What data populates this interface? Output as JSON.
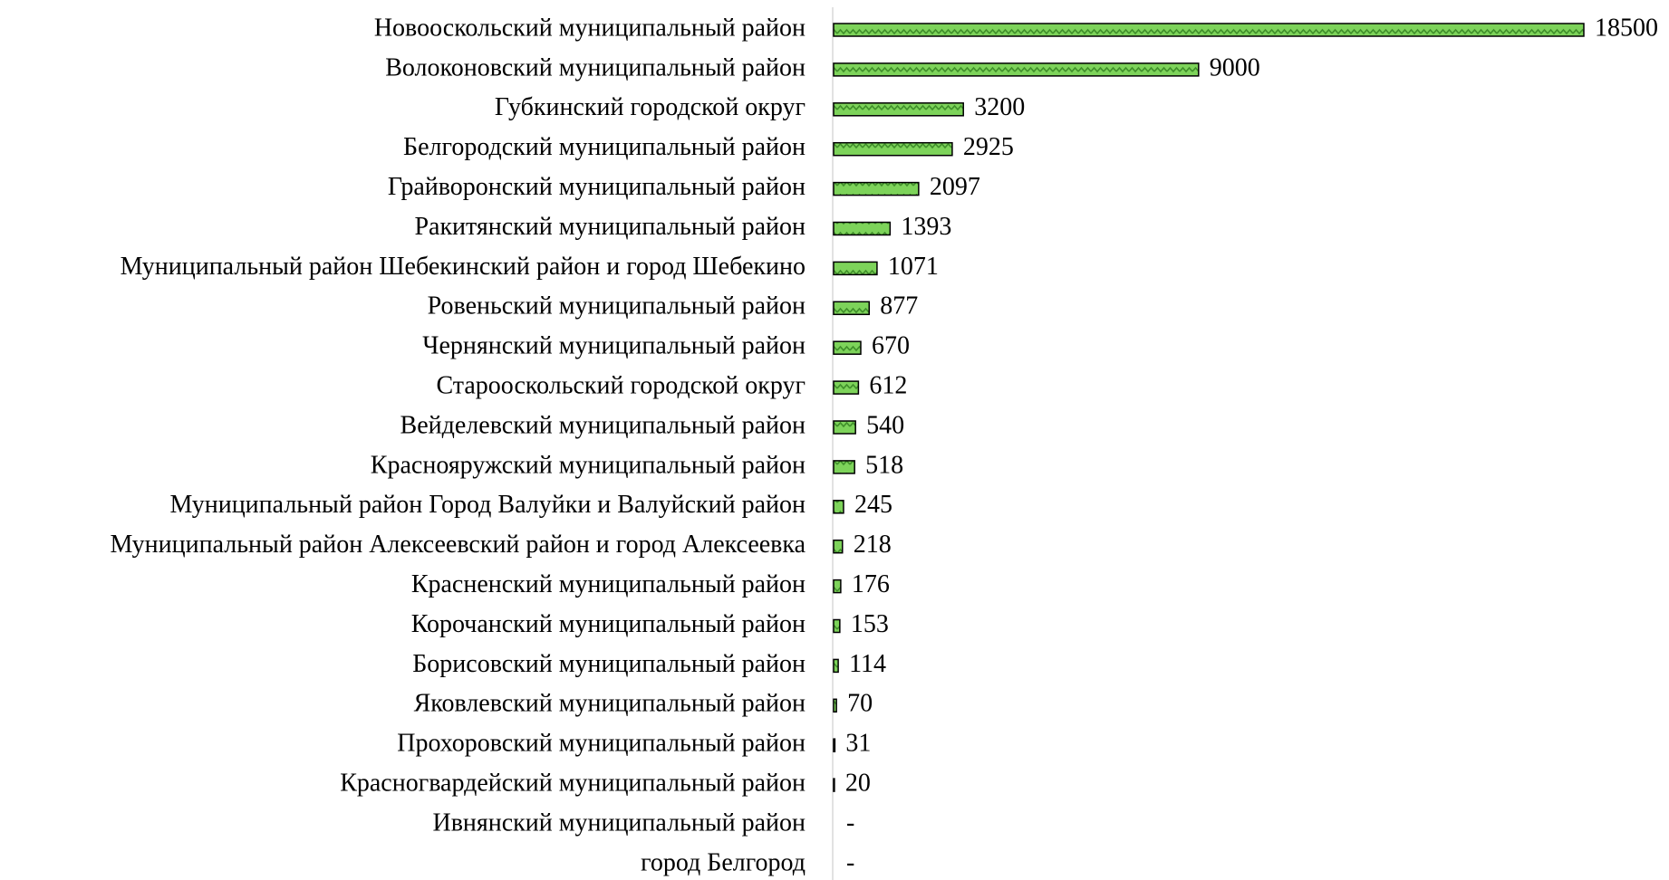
{
  "chart_data": {
    "type": "bar",
    "orientation": "horizontal",
    "categories": [
      "Новооскольский муниципальный район",
      "Волоконовский муниципальный район",
      "Губкинский городской округ",
      "Белгородский муниципальный район",
      "Грайворонский муниципальный район",
      "Ракитянский муниципальный район",
      "Муниципальный район Шебекинский район и город Шебекино",
      "Ровеньский муниципальный район",
      "Чернянский муниципальный район",
      "Старооскольский городской округ",
      "Вейделевский муниципальный район",
      "Краснояружский муниципальный район",
      "Муниципальный район Город Валуйки и Валуйский район",
      "Муниципальный район Алексеевский район и город Алексеевка",
      "Красненский муниципальный район",
      "Корочанский муниципальный район",
      "Борисовский муниципальный район",
      "Яковлевский муниципальный район",
      "Прохоровский муниципальный район",
      "Красногвардейский муниципальный район",
      "Ивнянский муниципальный район",
      "город Белгород"
    ],
    "values": [
      18500,
      9000,
      3200,
      2925,
      2097,
      1393,
      1071,
      877,
      670,
      612,
      540,
      518,
      245,
      218,
      176,
      153,
      114,
      70,
      31,
      20,
      null,
      null
    ],
    "value_labels": [
      "18500",
      "9000",
      "3200",
      "2925",
      "2097",
      "1393",
      "1071",
      "877",
      "670",
      "612",
      "540",
      "518",
      "245",
      "218",
      "176",
      "153",
      "114",
      "70",
      "31",
      "20",
      "-",
      "-"
    ],
    "color": "#7dd35a"
  }
}
